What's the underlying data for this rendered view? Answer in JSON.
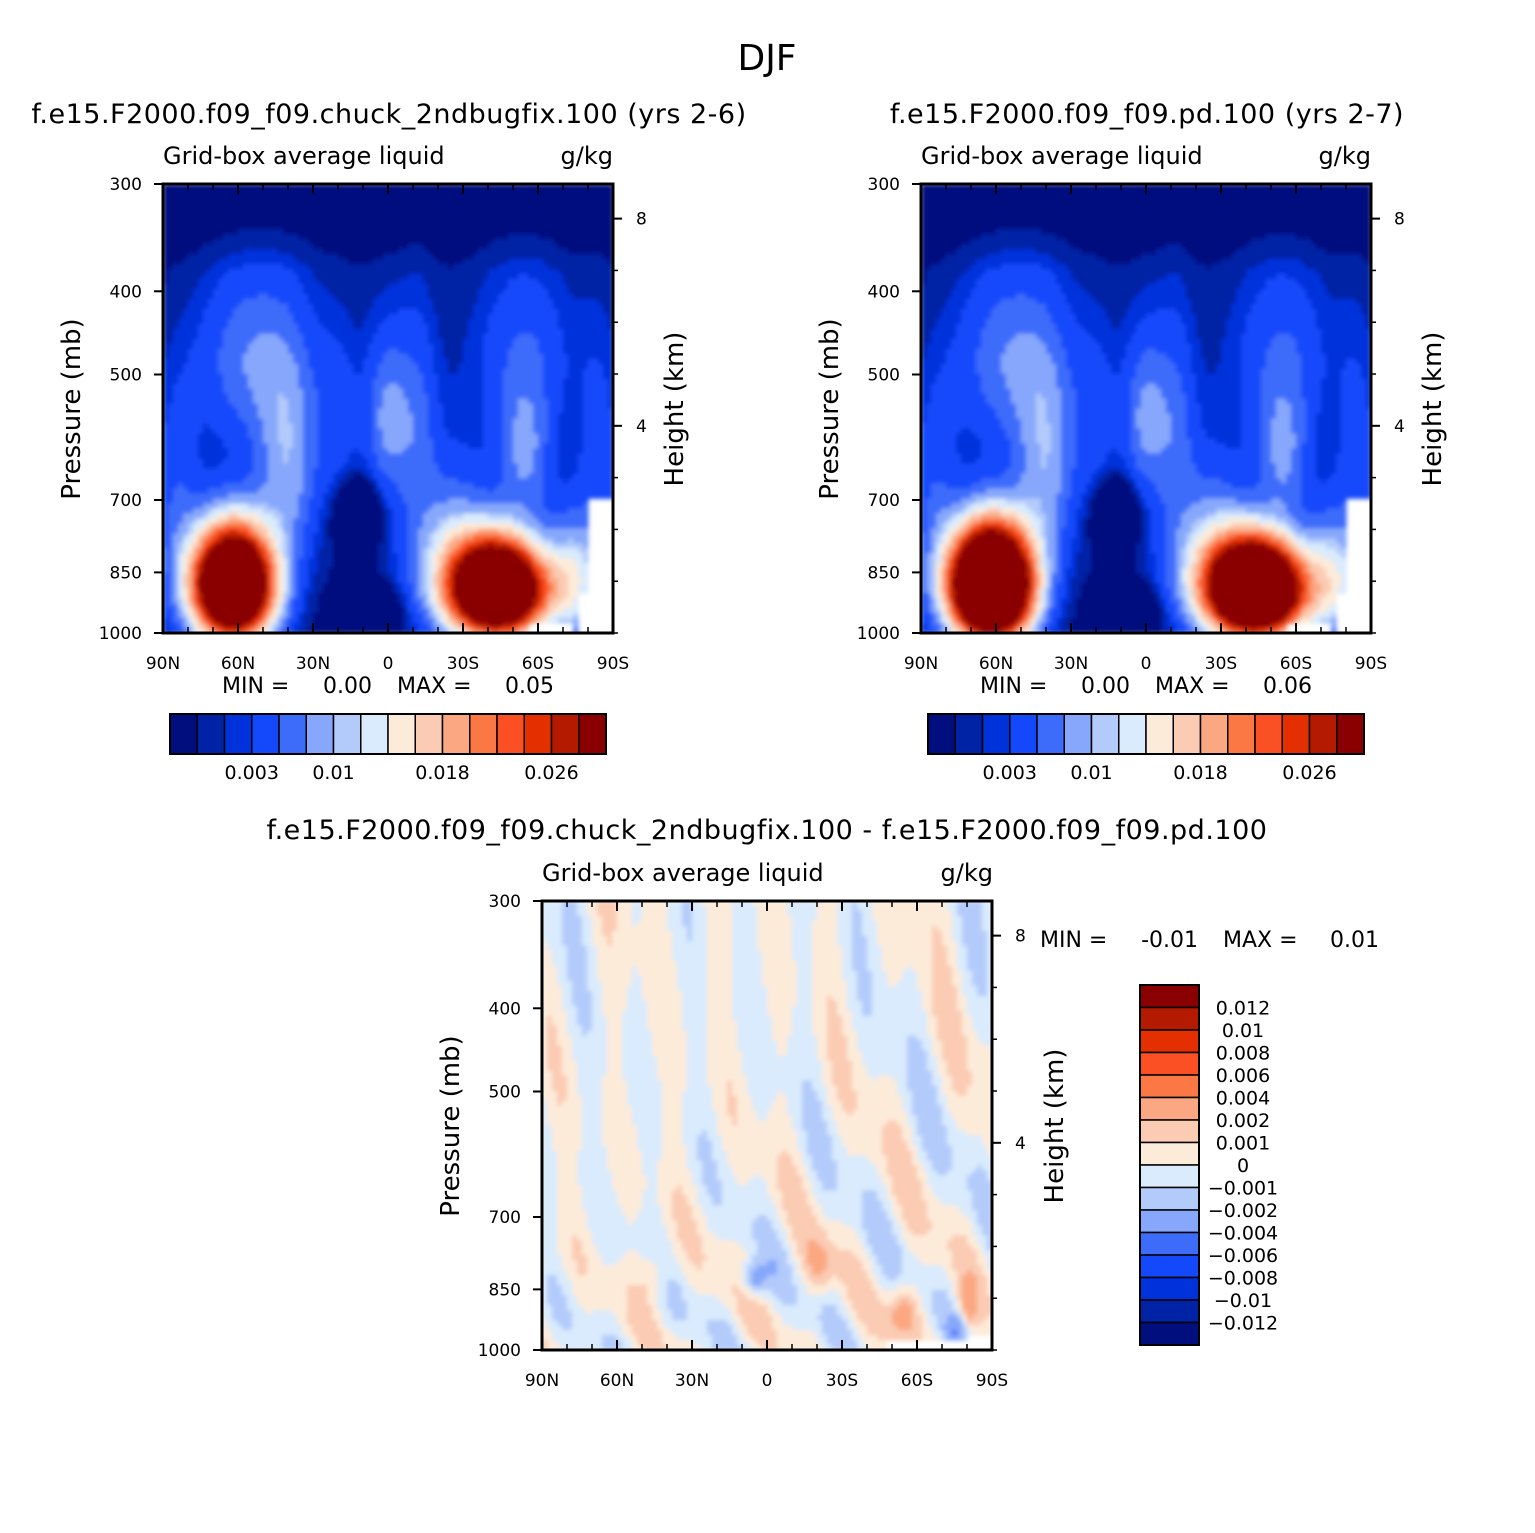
{
  "figure_title": "DJF",
  "chart_data": [
    {
      "type": "heatmap",
      "case_title": "f.e15.F2000.f09_f09.chuck_2ndbugfix.100 (yrs 2-6)",
      "variable_label": "Grid-box average liquid",
      "units": "g/kg",
      "ylabel": "Pressure (mb)",
      "ylabel_right": "Height (km)",
      "y_ticks": [
        "300",
        "400",
        "500",
        "700",
        "850",
        "1000"
      ],
      "y_right_ticks": [
        "8",
        "4"
      ],
      "x_ticks": [
        "90N",
        "60N",
        "30N",
        "0",
        "30S",
        "60S",
        "90S"
      ],
      "min_text": "MIN =",
      "min_value": "0.00",
      "max_text": "MAX =",
      "max_value": "0.05",
      "colorbar_labels": [
        "0.003",
        "0.01",
        "0.018",
        "0.026"
      ],
      "colors": [
        "#000e7e",
        "#0023a5",
        "#0032dc",
        "#1449fb",
        "#3d6cfb",
        "#86a7fb",
        "#b3cbfb",
        "#d9ebfd",
        "#fdebd9",
        "#fbcbb3",
        "#fba882",
        "#fb7744",
        "#fb5023",
        "#e42f00",
        "#b31a00",
        "#8a0000"
      ],
      "contour_levels": [
        0.001,
        0.002,
        0.003,
        0.005,
        0.007,
        0.009,
        0.01,
        0.012,
        0.014,
        0.016,
        0.018,
        0.02,
        0.022,
        0.024,
        0.026
      ]
    },
    {
      "type": "heatmap",
      "case_title": "f.e15.F2000.f09_f09.pd.100 (yrs 2-7)",
      "variable_label": "Grid-box average liquid",
      "units": "g/kg",
      "ylabel": "Pressure (mb)",
      "ylabel_right": "Height (km)",
      "y_ticks": [
        "300",
        "400",
        "500",
        "700",
        "850",
        "1000"
      ],
      "y_right_ticks": [
        "8",
        "4"
      ],
      "x_ticks": [
        "90N",
        "60N",
        "30N",
        "0",
        "30S",
        "60S",
        "90S"
      ],
      "min_text": "MIN =",
      "min_value": "0.00",
      "max_text": "MAX =",
      "max_value": "0.06",
      "colorbar_labels": [
        "0.003",
        "0.01",
        "0.018",
        "0.026"
      ],
      "colors": [
        "#000e7e",
        "#0023a5",
        "#0032dc",
        "#1449fb",
        "#3d6cfb",
        "#86a7fb",
        "#b3cbfb",
        "#d9ebfd",
        "#fdebd9",
        "#fbcbb3",
        "#fba882",
        "#fb7744",
        "#fb5023",
        "#e42f00",
        "#b31a00",
        "#8a0000"
      ],
      "contour_levels": [
        0.001,
        0.002,
        0.003,
        0.005,
        0.007,
        0.009,
        0.01,
        0.012,
        0.014,
        0.016,
        0.018,
        0.02,
        0.022,
        0.024,
        0.026
      ]
    },
    {
      "type": "heatmap",
      "case_title": "f.e15.F2000.f09_f09.chuck_2ndbugfix.100 - f.e15.F2000.f09_f09.pd.100",
      "variable_label": "Grid-box average liquid",
      "units": "g/kg",
      "ylabel": "Pressure (mb)",
      "ylabel_right": "Height (km)",
      "y_ticks": [
        "300",
        "400",
        "500",
        "700",
        "850",
        "1000"
      ],
      "y_right_ticks": [
        "8",
        "4"
      ],
      "x_ticks": [
        "90N",
        "60N",
        "30N",
        "0",
        "30S",
        "60S",
        "90S"
      ],
      "min_text": "MIN =",
      "min_value": "-0.01",
      "max_text": "MAX =",
      "max_value": "0.01",
      "colorbar_labels": [
        "0.012",
        "0.01",
        "0.008",
        "0.006",
        "0.004",
        "0.002",
        "0.001",
        "0",
        "-0.001",
        "-0.002",
        "-0.004",
        "-0.006",
        "-0.008",
        "-0.01",
        "-0.012"
      ],
      "colors": [
        "#8a0000",
        "#b31a00",
        "#e42f00",
        "#fb5023",
        "#fb7744",
        "#fba882",
        "#fbcbb3",
        "#fdebd9",
        "#d9ebfd",
        "#b3cbfb",
        "#86a7fb",
        "#3d6cfb",
        "#1449fb",
        "#0032dc",
        "#0023a5",
        "#000e7e"
      ]
    }
  ]
}
